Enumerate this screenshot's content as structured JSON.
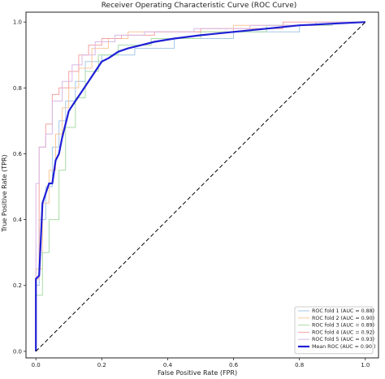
{
  "chart_data": {
    "type": "line",
    "title": "Receiver Operating Characteristic Curve (ROC Curve)",
    "xlabel": "False Positive Rate (FPR)",
    "ylabel": "True Positive Rate (TPR)",
    "xlim": [
      -0.03,
      1.04
    ],
    "ylim": [
      -0.02,
      1.03
    ],
    "xticks": [
      0.0,
      0.2,
      0.4,
      0.6,
      0.8,
      1.0
    ],
    "yticks": [
      0.0,
      0.2,
      0.4,
      0.6,
      0.8,
      1.0
    ],
    "xtick_labels": [
      "0.0",
      "0.2",
      "0.4",
      "0.6",
      "0.8",
      "1.0"
    ],
    "ytick_labels": [
      "0.0",
      "0.2",
      "0.4",
      "0.6",
      "0.8",
      "1.0"
    ],
    "legend_position": "lower-right",
    "grid": false,
    "series": [
      {
        "name": "ROC fold 1 (AUC = 0.88)",
        "color": "#a6c8e8",
        "x": [
          0,
          0,
          0.01,
          0.01,
          0.03,
          0.03,
          0.05,
          0.05,
          0.07,
          0.07,
          0.09,
          0.09,
          0.12,
          0.12,
          0.15,
          0.15,
          0.2,
          0.2,
          0.3,
          0.3,
          0.42,
          0.42,
          0.6,
          0.6,
          0.8,
          0.8,
          1.0
        ],
        "y": [
          0,
          0.2,
          0.2,
          0.4,
          0.4,
          0.5,
          0.5,
          0.62,
          0.62,
          0.7,
          0.7,
          0.76,
          0.76,
          0.82,
          0.82,
          0.88,
          0.88,
          0.9,
          0.9,
          0.92,
          0.92,
          0.95,
          0.95,
          0.97,
          0.97,
          0.99,
          1.0
        ]
      },
      {
        "name": "ROC fold 2 (AUC = 0.90)",
        "color": "#f9c89b",
        "x": [
          0,
          0,
          0.02,
          0.02,
          0.04,
          0.04,
          0.06,
          0.06,
          0.08,
          0.08,
          0.1,
          0.1,
          0.13,
          0.13,
          0.17,
          0.17,
          0.22,
          0.22,
          0.28,
          0.28,
          0.4,
          0.4,
          0.6,
          0.6,
          0.85,
          0.85,
          1.0
        ],
        "y": [
          0,
          0.25,
          0.25,
          0.45,
          0.45,
          0.55,
          0.55,
          0.66,
          0.66,
          0.74,
          0.74,
          0.8,
          0.8,
          0.86,
          0.86,
          0.92,
          0.92,
          0.95,
          0.95,
          0.97,
          0.97,
          0.97,
          0.97,
          0.99,
          0.99,
          1.0,
          1.0
        ]
      },
      {
        "name": "ROC fold 3 (AUC = 0.89)",
        "color": "#a8dca8",
        "x": [
          0,
          0,
          0.02,
          0.02,
          0.04,
          0.04,
          0.07,
          0.07,
          0.09,
          0.09,
          0.12,
          0.12,
          0.15,
          0.15,
          0.19,
          0.19,
          0.25,
          0.25,
          0.35,
          0.35,
          0.5,
          0.5,
          0.7,
          0.7,
          0.9,
          0.9,
          1.0
        ],
        "y": [
          0,
          0.17,
          0.17,
          0.3,
          0.3,
          0.4,
          0.4,
          0.55,
          0.55,
          0.68,
          0.68,
          0.77,
          0.77,
          0.85,
          0.85,
          0.9,
          0.9,
          0.93,
          0.93,
          0.95,
          0.95,
          0.97,
          0.97,
          0.99,
          0.99,
          1.0,
          1.0
        ]
      },
      {
        "name": "ROC fold 4 (AUC = 0.92)",
        "color": "#f4a3a3",
        "x": [
          0,
          0,
          0.01,
          0.01,
          0.03,
          0.03,
          0.05,
          0.05,
          0.07,
          0.07,
          0.1,
          0.1,
          0.13,
          0.13,
          0.16,
          0.16,
          0.2,
          0.2,
          0.26,
          0.26,
          0.36,
          0.36,
          0.5,
          0.5,
          0.75,
          0.75,
          1.0
        ],
        "y": [
          0,
          0.22,
          0.22,
          0.62,
          0.62,
          0.69,
          0.69,
          0.78,
          0.78,
          0.8,
          0.8,
          0.85,
          0.85,
          0.9,
          0.9,
          0.93,
          0.93,
          0.95,
          0.95,
          0.96,
          0.96,
          0.97,
          0.97,
          0.98,
          0.98,
          1.0,
          1.0
        ]
      },
      {
        "name": "ROC fold 5 (AUC = 0.93)",
        "color": "#d9b8e6",
        "x": [
          0,
          0,
          0.01,
          0.01,
          0.03,
          0.03,
          0.05,
          0.05,
          0.08,
          0.08,
          0.11,
          0.11,
          0.14,
          0.14,
          0.18,
          0.18,
          0.24,
          0.24,
          0.33,
          0.33,
          0.48,
          0.48,
          0.65,
          0.65,
          0.85,
          0.85,
          1.0
        ],
        "y": [
          0,
          0.51,
          0.51,
          0.62,
          0.62,
          0.66,
          0.66,
          0.76,
          0.76,
          0.82,
          0.82,
          0.87,
          0.87,
          0.9,
          0.9,
          0.94,
          0.94,
          0.96,
          0.96,
          0.97,
          0.97,
          0.98,
          0.98,
          0.99,
          0.99,
          1.0,
          1.0
        ]
      },
      {
        "name": "Mean ROC (AUC = 0.90 )",
        "color": "#1f1fd6",
        "width": 2.2,
        "x": [
          0,
          0.0,
          0.01,
          0.02,
          0.03,
          0.04,
          0.05,
          0.06,
          0.07,
          0.08,
          0.09,
          0.1,
          0.12,
          0.14,
          0.16,
          0.18,
          0.2,
          0.22,
          0.25,
          0.28,
          0.32,
          0.36,
          0.42,
          0.5,
          0.6,
          0.7,
          0.8,
          0.9,
          1.0
        ],
        "y": [
          0,
          0.22,
          0.23,
          0.45,
          0.48,
          0.51,
          0.51,
          0.58,
          0.6,
          0.65,
          0.69,
          0.73,
          0.76,
          0.79,
          0.82,
          0.85,
          0.88,
          0.89,
          0.91,
          0.92,
          0.93,
          0.94,
          0.95,
          0.96,
          0.97,
          0.98,
          0.99,
          0.995,
          1.0
        ]
      },
      {
        "name": "",
        "color": "#000000",
        "dashed": true,
        "x": [
          0,
          1
        ],
        "y": [
          0,
          1
        ]
      }
    ]
  }
}
